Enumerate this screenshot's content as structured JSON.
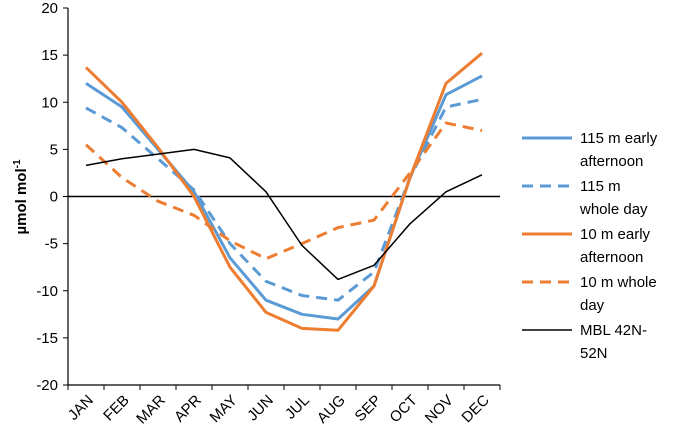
{
  "chart_data": {
    "type": "line",
    "ylabel_main": "µmol mol",
    "ylabel_sup": "-1",
    "ylim": [
      -20,
      20
    ],
    "yticks": [
      -20,
      -15,
      -10,
      -5,
      0,
      5,
      10,
      15,
      20
    ],
    "categories": [
      "JAN",
      "FEB",
      "MAR",
      "APR",
      "MAY",
      "JUN",
      "JUL",
      "AUG",
      "SEP",
      "OCT",
      "NOV",
      "DEC"
    ],
    "grid": false,
    "legend_position": "right",
    "series": [
      {
        "name_lines": [
          "115 m early",
          "afternoon"
        ],
        "color": "#5b9bd5",
        "dash": "solid",
        "width": 3,
        "values": [
          12.0,
          9.5,
          5.0,
          0.5,
          -6.5,
          -11.0,
          -12.5,
          -13.0,
          -9.5,
          2.0,
          10.8,
          12.8
        ]
      },
      {
        "name_lines": [
          "115 m",
          "whole day"
        ],
        "color": "#5b9bd5",
        "dash": "dashed",
        "width": 3,
        "values": [
          9.4,
          7.3,
          4.0,
          0.7,
          -5.0,
          -9.0,
          -10.5,
          -11.0,
          -8.0,
          2.0,
          9.5,
          10.3
        ]
      },
      {
        "name_lines": [
          "10 m early",
          "afternoon"
        ],
        "color": "#ed7d31",
        "dash": "solid",
        "width": 3,
        "values": [
          13.7,
          10.0,
          5.2,
          0.0,
          -7.5,
          -12.3,
          -14.0,
          -14.2,
          -9.5,
          2.0,
          12.0,
          15.2
        ]
      },
      {
        "name_lines": [
          "10 m whole",
          "day"
        ],
        "color": "#ed7d31",
        "dash": "dashed",
        "width": 3,
        "values": [
          5.5,
          2.0,
          -0.5,
          -2.0,
          -4.7,
          -6.6,
          -5.0,
          -3.3,
          -2.5,
          2.5,
          7.8,
          7.0
        ]
      },
      {
        "name_lines": [
          "MBL 42N-",
          "52N"
        ],
        "color": "#000000",
        "dash": "solid",
        "width": 1.5,
        "values": [
          3.3,
          4.0,
          4.5,
          5.0,
          4.1,
          0.5,
          -5.2,
          -8.8,
          -7.3,
          -2.9,
          0.5,
          2.3
        ]
      }
    ]
  }
}
